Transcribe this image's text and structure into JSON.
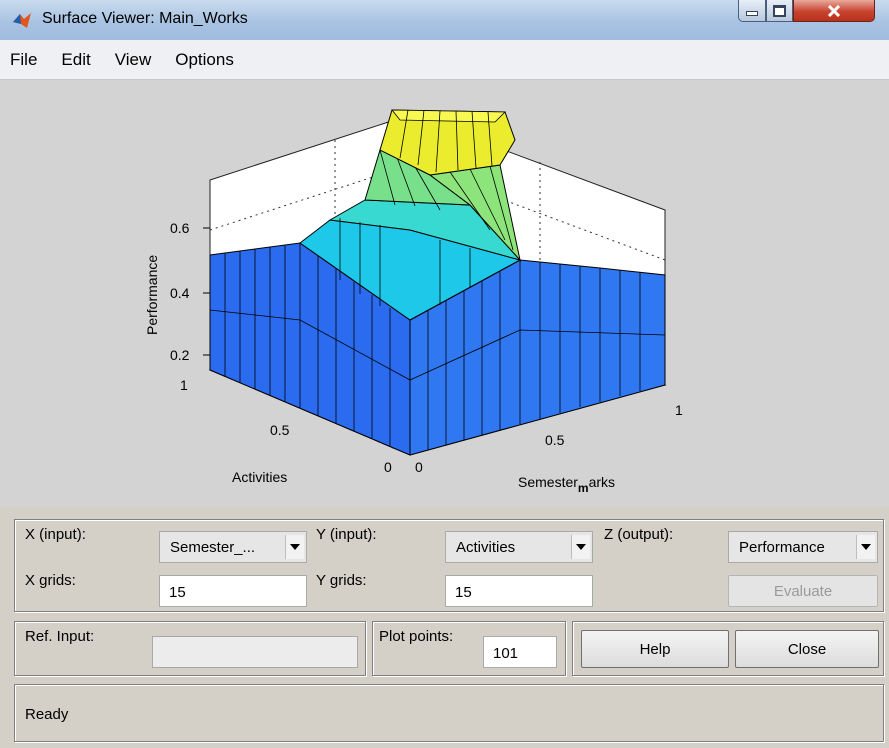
{
  "window": {
    "title": "Surface Viewer: Main_Works",
    "app_icon": "matlab-icon",
    "controls": [
      "minimize-icon",
      "maximize-icon",
      "close-icon"
    ]
  },
  "menu": [
    "File",
    "Edit",
    "View",
    "Options"
  ],
  "plot": {
    "zlabel": "Performance",
    "ylabel": "Activities",
    "xlabel_left": "Semester",
    "xlabel_sub": "m",
    "xlabel_right": "arks",
    "z_ticks": [
      "0.6",
      "0.4",
      "0.2"
    ],
    "y_ticks": [
      "1",
      "0.5",
      "0"
    ],
    "x_ticks": [
      "0",
      "0.5",
      "1"
    ]
  },
  "controls": {
    "x_input_label": "X (input):",
    "x_input_value": "Semester_...",
    "y_input_label": "Y (input):",
    "y_input_value": "Activities",
    "z_output_label": "Z (output):",
    "z_output_value": "Performance",
    "x_grids_label": "X grids:",
    "x_grids_value": "15",
    "y_grids_label": "Y grids:",
    "y_grids_value": "15",
    "evaluate_label": "Evaluate"
  },
  "footer": {
    "ref_input_label": "Ref. Input:",
    "ref_input_value": "",
    "plot_points_label": "Plot points:",
    "plot_points_value": "101",
    "help_label": "Help",
    "close_label": "Close",
    "status": "Ready"
  },
  "colors": {
    "low": "#1f5cf0",
    "mid": "#1ec8e8",
    "high": "#f6f63a"
  }
}
